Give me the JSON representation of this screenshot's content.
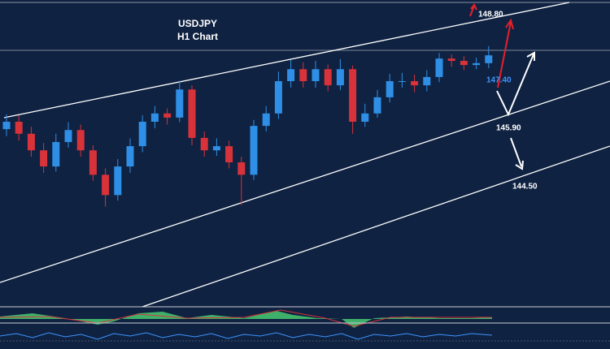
{
  "chart_data": {
    "type": "candlestick",
    "title": "USDJPY",
    "subtitle": "H1 Chart",
    "up_color": "#2f8fe6",
    "down_color": "#d8323a",
    "ylim": [
      142.6,
      149.2
    ],
    "open": [
      146.4,
      146.56,
      146.3,
      145.94,
      145.59,
      146.12,
      146.38,
      145.94,
      145.41,
      144.97,
      145.59,
      146.03,
      146.56,
      146.74,
      146.65,
      147.26,
      146.21,
      145.94,
      146.03,
      145.68,
      145.41,
      146.47,
      146.74,
      147.44,
      147.7,
      147.44,
      147.7,
      147.35,
      147.7,
      146.56,
      146.74,
      147.09,
      147.44,
      147.44,
      147.35,
      147.53,
      147.93,
      147.88,
      147.79,
      147.83
    ],
    "high": [
      146.72,
      146.7,
      146.45,
      146.1,
      146.3,
      146.55,
      146.5,
      146.05,
      145.55,
      145.75,
      146.2,
      146.7,
      146.9,
      146.85,
      147.45,
      147.35,
      146.35,
      146.2,
      146.15,
      145.8,
      146.6,
      146.9,
      147.65,
      147.9,
      147.85,
      147.88,
      147.8,
      147.92,
      147.78,
      146.95,
      147.25,
      147.6,
      147.62,
      147.58,
      147.68,
      148.05,
      148.02,
      147.98,
      147.95,
      148.2
    ],
    "low": [
      146.25,
      146.15,
      145.8,
      145.45,
      145.48,
      146.0,
      145.8,
      145.28,
      144.72,
      144.85,
      145.45,
      145.9,
      146.42,
      146.5,
      146.55,
      146.05,
      145.8,
      145.82,
      145.55,
      144.75,
      145.3,
      146.35,
      146.62,
      147.3,
      147.3,
      147.3,
      147.22,
      147.25,
      146.3,
      146.45,
      146.65,
      146.98,
      147.3,
      147.2,
      147.22,
      147.42,
      147.75,
      147.68,
      147.7,
      147.72
    ],
    "close": [
      146.56,
      146.3,
      145.94,
      145.59,
      146.12,
      146.38,
      145.94,
      145.41,
      144.97,
      145.59,
      146.03,
      146.56,
      146.74,
      146.65,
      147.26,
      146.21,
      145.94,
      146.03,
      145.68,
      145.41,
      146.47,
      146.74,
      147.44,
      147.7,
      147.44,
      147.7,
      147.35,
      147.7,
      146.56,
      146.74,
      147.09,
      147.44,
      147.44,
      147.35,
      147.53,
      147.93,
      147.88,
      147.79,
      147.83,
      148.0
    ],
    "levels": [
      {
        "value": 148.8,
        "label": "148.80",
        "color": "#ffffff"
      },
      {
        "value": 147.4,
        "label": "147.40",
        "color": "#3d95ff"
      },
      {
        "value": 145.9,
        "label": "145.90",
        "color": "#ffffff"
      },
      {
        "value": 144.5,
        "label": "144.50",
        "color": "#ffffff"
      }
    ]
  }
}
